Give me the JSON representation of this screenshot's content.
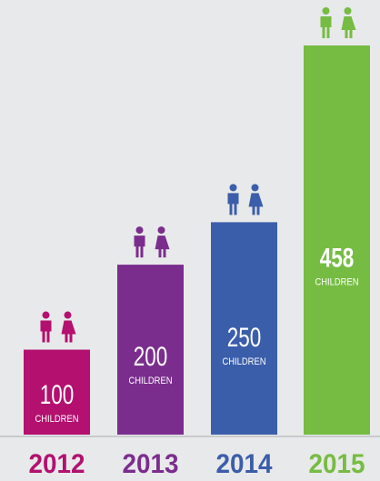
{
  "chart_data": {
    "type": "bar",
    "categories": [
      "2012",
      "2013",
      "2014",
      "2015"
    ],
    "values": [
      100,
      200,
      250,
      458
    ],
    "unit_label": "CHILDREN",
    "colors": [
      "#b3106f",
      "#7b2d8e",
      "#3b5eab",
      "#76bc43"
    ]
  }
}
